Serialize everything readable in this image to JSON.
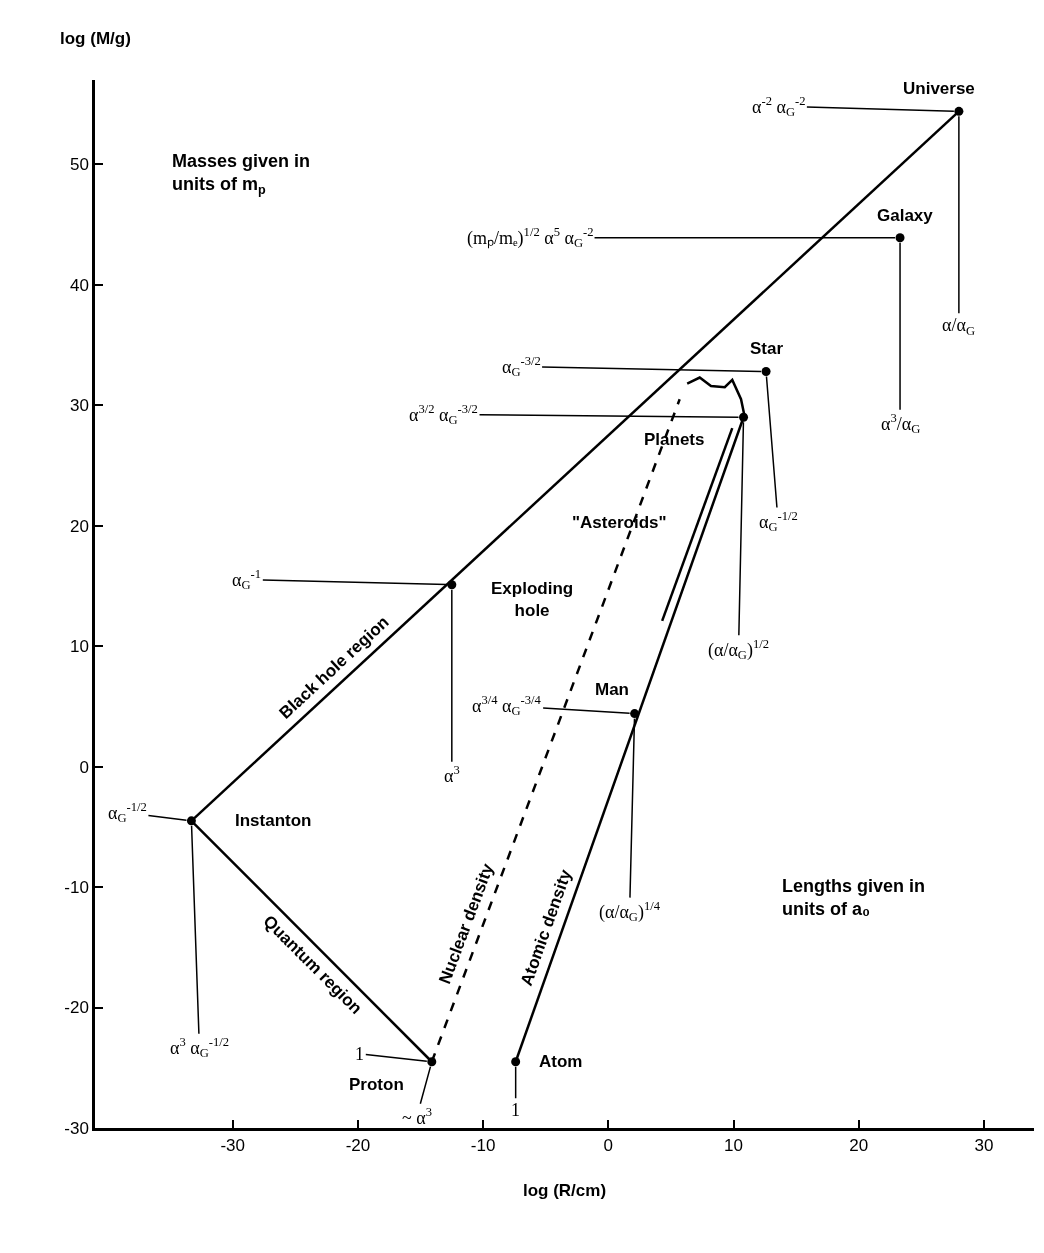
{
  "chart_data": {
    "type": "line",
    "xlabel": "log (R/cm)",
    "ylabel": "log (M/g)",
    "xlim": [
      -41,
      34
    ],
    "ylim": [
      -30,
      57
    ],
    "xticks": [
      -30,
      -20,
      -10,
      0,
      10,
      20,
      30
    ],
    "yticks": [
      -30,
      -20,
      -10,
      0,
      10,
      20,
      30,
      40,
      50
    ],
    "series": [
      {
        "name": "Black hole region",
        "color": "#000000",
        "x": [
          -33.3,
          28.0
        ],
        "values": [
          -4.5,
          54.4
        ],
        "line_style": "solid",
        "marker": "none"
      },
      {
        "name": "Quantum region",
        "color": "#000000",
        "x": [
          -33.3,
          -14.1
        ],
        "values": [
          -4.5,
          -24.5
        ],
        "line_style": "solid",
        "marker": "none"
      },
      {
        "name": "Nuclear density",
        "color": "#000000",
        "x": [
          -14.1,
          5.7
        ],
        "values": [
          -24.5,
          30.5
        ],
        "line_style": "dashed",
        "marker": "none"
      },
      {
        "name": "Atomic density",
        "color": "#000000",
        "x": [
          -7.4,
          10.8
        ],
        "values": [
          -24.5,
          29.0
        ],
        "line_style": "solid",
        "marker": "none"
      },
      {
        "color": "#000000",
        "x": [
          6.3,
          7.3,
          8.2,
          9.3,
          9.9,
          10.6,
          10.9
        ],
        "values": [
          31.8,
          32.3,
          31.6,
          31.5,
          32.1,
          30.5,
          29.0
        ],
        "line_style": "solid",
        "marker": "none"
      },
      {
        "color": "#000000",
        "x": [
          9.9,
          4.3
        ],
        "values": [
          28.1,
          12.1
        ],
        "line_style": "solid",
        "marker": "none"
      },
      {
        "type": "scatter",
        "color": "#000000",
        "x": [
          28.0,
          23.3,
          12.6,
          10.8,
          -12.5,
          2.1,
          -33.3,
          -14.1,
          -7.4
        ],
        "values": [
          54.4,
          43.9,
          32.8,
          29.0,
          15.1,
          4.4,
          -4.5,
          -24.5,
          -24.5
        ],
        "marker": "circle"
      }
    ],
    "annotations": [
      {
        "text": "Universe",
        "x": 28.0,
        "y": 54.4
      },
      {
        "text": "α$^{-2}$ α$_{G}$$^{-2}$",
        "x": 28.0,
        "y": 54.4
      },
      {
        "text": "α/α$_{G}$",
        "x": 28.0,
        "y": 54.4
      },
      {
        "text": "Galaxy",
        "x": 23.3,
        "y": 43.9
      },
      {
        "text": "(mₚ/mₑ)$^{1/2}$ α$^{5}$ α$_{G}$$^{-2}$",
        "x": 23.3,
        "y": 43.9
      },
      {
        "text": "α$^{3}$/α$_{G}$",
        "x": 23.3,
        "y": 43.9
      },
      {
        "text": "Star",
        "x": 12.6,
        "y": 32.8
      },
      {
        "text": "α$_{G}$$^{-3/2}$",
        "x": 12.6,
        "y": 32.8
      },
      {
        "text": "α$_{G}$$^{-1/2}$",
        "x": 12.6,
        "y": 32.8
      },
      {
        "text": "Planets",
        "x": 10.8,
        "y": 29.0
      },
      {
        "text": "α$^{3/2}$ α$_{G}$$^{-3/2}$",
        "x": 10.8,
        "y": 29.0
      },
      {
        "text": "(α/α$_{G}$)$^{1/2}$",
        "x": 10.8,
        "y": 29.0
      },
      {
        "text": "Exploding\nhole",
        "x": -12.5,
        "y": 15.1
      },
      {
        "text": "α$_{G}$$^{-1}$",
        "x": -12.5,
        "y": 15.1
      },
      {
        "text": "α$^{3}$",
        "x": -12.5,
        "y": 15.1
      },
      {
        "text": "Man",
        "x": 2.1,
        "y": 4.4
      },
      {
        "text": "α$^{3/4}$ α$_{G}$$^{-3/4}$",
        "x": 2.1,
        "y": 4.4
      },
      {
        "text": "(α/α$_{G}$)$^{1/4}$",
        "x": 2.1,
        "y": 4.4
      },
      {
        "text": "Instanton",
        "x": -33.3,
        "y": -4.5
      },
      {
        "text": "α$_{G}$$^{-1/2}$",
        "x": -33.3,
        "y": -4.5
      },
      {
        "text": "α$^{3}$ α$_{G}$$^{-1/2}$",
        "x": -33.3,
        "y": -4.5
      },
      {
        "text": "Proton",
        "x": -14.1,
        "y": -24.5
      },
      {
        "text": "1",
        "x": -14.1,
        "y": -24.5
      },
      {
        "text": "~ α$^{3}$",
        "x": -14.1,
        "y": -24.5
      },
      {
        "text": "Atom",
        "x": -7.4,
        "y": -24.5
      },
      {
        "text": "1",
        "x": -7.4,
        "y": -24.5
      },
      {
        "text": "\"Asteroids\"",
        "x": 6.1,
        "y": 16.9
      },
      "Masses given in\nunits of m$_{p}$",
      "Lengths given in\nunits of a₀"
    ]
  }
}
